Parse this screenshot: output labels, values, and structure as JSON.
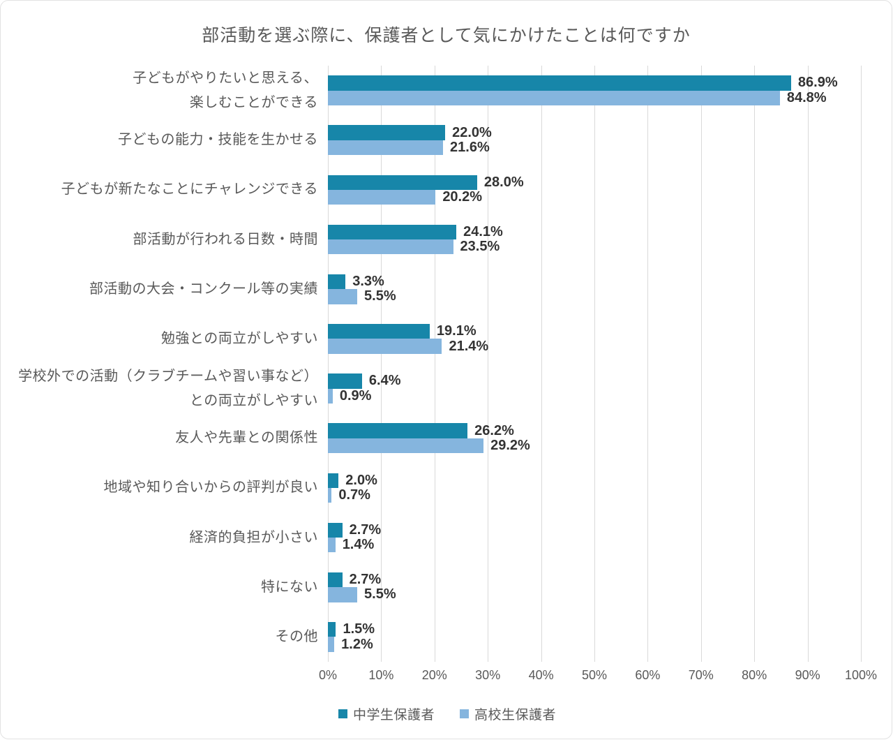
{
  "chart_data": {
    "type": "bar",
    "orientation": "horizontal",
    "title": "部活動を選ぶ際に、保護者として気にかけたことは何ですか",
    "categories": [
      "子どもがやりたいと思える、\n楽しむことができる",
      "子どもの能力・技能を生かせる",
      "子どもが新たなことにチャレンジできる",
      "部活動が行われる日数・時間",
      "部活動の大会・コンクール等の実績",
      "勉強との両立がしやすい",
      "学校外での活動（クラブチームや習い事など）\nとの両立がしやすい",
      "友人や先輩との関係性",
      "地域や知り合いからの評判が良い",
      "経済的負担が小さい",
      "特にない",
      "その他"
    ],
    "series": [
      {
        "name": "中学生保護者",
        "color": "#1786A9",
        "values": [
          86.9,
          22.0,
          28.0,
          24.1,
          3.3,
          19.1,
          6.4,
          26.2,
          2.0,
          2.7,
          2.7,
          1.5
        ]
      },
      {
        "name": "高校生保護者",
        "color": "#85B5DE",
        "values": [
          84.8,
          21.6,
          20.2,
          23.5,
          5.5,
          21.4,
          0.9,
          29.2,
          0.7,
          1.4,
          5.5,
          1.2
        ]
      }
    ],
    "value_suffix": "%",
    "value_decimals": 1,
    "xlim": [
      0,
      100
    ],
    "x_ticks": [
      "0%",
      "10%",
      "20%",
      "30%",
      "40%",
      "50%",
      "60%",
      "70%",
      "80%",
      "90%",
      "100%"
    ],
    "grid": true,
    "legend_position": "bottom"
  },
  "colors": {
    "gridline": "#d9d9d9",
    "axis_text": "#595959",
    "category_text": "#595959",
    "value_text": "#333333",
    "title_text": "#595959",
    "card_border": "#e2e2e2"
  }
}
